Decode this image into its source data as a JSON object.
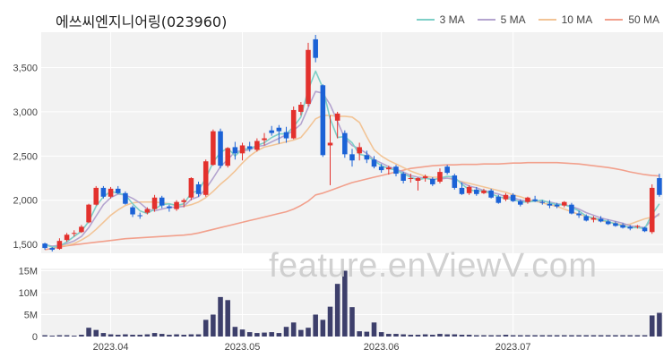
{
  "title": "에쓰씨엔지니어링(023960)",
  "watermark": "feature.enViewV.com",
  "legend": [
    {
      "label": "3 MA",
      "color": "#7ecfc7"
    },
    {
      "label": "5 MA",
      "color": "#b4a4cf"
    },
    {
      "label": "10 MA",
      "color": "#f2c496"
    },
    {
      "label": "50 MA",
      "color": "#f2a08c"
    }
  ],
  "colors": {
    "up": "#e3312d",
    "down": "#1b62d6",
    "volume": "#3d3f6b",
    "grid": "#ffffff",
    "plot_bg": "#f2f2f2"
  },
  "chart_data": [
    {
      "type": "candlestick",
      "ylim": [
        1400,
        3900
      ],
      "ytick_values": [
        1500,
        2000,
        2500,
        3000,
        3500
      ],
      "ytick_labels": [
        "1,500",
        "2,000",
        "2,500",
        "3,000",
        "3,500"
      ],
      "xtick_labels": [
        {
          "label": "2023.04",
          "index": 9
        },
        {
          "label": "2023.05",
          "index": 27
        },
        {
          "label": "2023.06",
          "index": 46
        },
        {
          "label": "2023.07",
          "index": 64
        }
      ],
      "candles": [
        [
          1510,
          1520,
          1440,
          1460
        ],
        [
          1460,
          1470,
          1420,
          1440
        ],
        [
          1450,
          1570,
          1440,
          1540
        ],
        [
          1550,
          1630,
          1530,
          1610
        ],
        [
          1620,
          1660,
          1590,
          1630
        ],
        [
          1640,
          1720,
          1630,
          1700
        ],
        [
          1750,
          1960,
          1740,
          1950
        ],
        [
          1950,
          2160,
          1940,
          2140
        ],
        [
          2140,
          2160,
          2020,
          2040
        ],
        [
          2040,
          2150,
          2020,
          2130
        ],
        [
          2130,
          2160,
          2070,
          2080
        ],
        [
          2080,
          2100,
          1950,
          1960
        ],
        [
          1920,
          1940,
          1810,
          1840
        ],
        [
          1830,
          1860,
          1790,
          1820
        ],
        [
          1860,
          1920,
          1840,
          1900
        ],
        [
          1900,
          2060,
          1870,
          2030
        ],
        [
          2030,
          2050,
          1910,
          1940
        ],
        [
          1930,
          1950,
          1870,
          1910
        ],
        [
          1900,
          2000,
          1880,
          1980
        ],
        [
          1980,
          2020,
          1920,
          2000
        ],
        [
          2030,
          2260,
          2000,
          2250
        ],
        [
          2180,
          2210,
          2040,
          2070
        ],
        [
          2060,
          2460,
          2040,
          2440
        ],
        [
          2400,
          2800,
          2390,
          2780
        ],
        [
          2780,
          2810,
          2360,
          2390
        ],
        [
          2390,
          2600,
          2370,
          2590
        ],
        [
          2600,
          2660,
          2460,
          2530
        ],
        [
          2530,
          2650,
          2450,
          2620
        ],
        [
          2610,
          2660,
          2550,
          2580
        ],
        [
          2570,
          2700,
          2550,
          2670
        ],
        [
          2680,
          2760,
          2620,
          2700
        ],
        [
          2790,
          2840,
          2730,
          2760
        ],
        [
          2820,
          2850,
          2640,
          2780
        ],
        [
          2770,
          2830,
          2650,
          2700
        ],
        [
          2700,
          3060,
          2690,
          3020
        ],
        [
          3000,
          3110,
          2960,
          3080
        ],
        [
          3090,
          3780,
          3060,
          3700
        ],
        [
          3820,
          3870,
          3560,
          3610
        ],
        [
          3300,
          3310,
          2490,
          2510
        ],
        [
          2620,
          2960,
          2170,
          2650
        ],
        [
          2900,
          3000,
          2700,
          2980
        ],
        [
          2760,
          2790,
          2480,
          2520
        ],
        [
          2520,
          2580,
          2380,
          2450
        ],
        [
          2530,
          2650,
          2450,
          2600
        ],
        [
          2510,
          2560,
          2420,
          2460
        ],
        [
          2460,
          2500,
          2360,
          2380
        ],
        [
          2380,
          2410,
          2310,
          2340
        ],
        [
          2350,
          2390,
          2290,
          2370
        ],
        [
          2380,
          2400,
          2270,
          2300
        ],
        [
          2300,
          2320,
          2190,
          2220
        ],
        [
          2240,
          2300,
          2200,
          2250
        ],
        [
          2220,
          2260,
          2110,
          2250
        ],
        [
          2250,
          2290,
          2210,
          2270
        ],
        [
          2240,
          2260,
          2160,
          2180
        ],
        [
          2210,
          2360,
          2190,
          2320
        ],
        [
          2380,
          2400,
          2290,
          2310
        ],
        [
          2280,
          2300,
          2120,
          2140
        ],
        [
          2140,
          2200,
          2060,
          2070
        ],
        [
          2080,
          2170,
          2060,
          2150
        ],
        [
          2120,
          2150,
          2050,
          2070
        ],
        [
          2080,
          2130,
          2070,
          2110
        ],
        [
          2110,
          2130,
          2020,
          2030
        ],
        [
          2040,
          2060,
          1960,
          1970
        ],
        [
          2010,
          2080,
          1990,
          2060
        ],
        [
          2060,
          2080,
          1980,
          1990
        ],
        [
          1990,
          2010,
          1930,
          1950
        ],
        [
          1980,
          2040,
          1960,
          2030
        ],
        [
          2010,
          2050,
          1980,
          1990
        ],
        [
          1980,
          2000,
          1950,
          1970
        ],
        [
          1960,
          2000,
          1910,
          1940
        ],
        [
          1950,
          1970,
          1910,
          1930
        ],
        [
          1940,
          1990,
          1920,
          1980
        ],
        [
          1950,
          1970,
          1840,
          1850
        ],
        [
          1850,
          1880,
          1800,
          1830
        ],
        [
          1820,
          1840,
          1760,
          1770
        ],
        [
          1780,
          1820,
          1750,
          1800
        ],
        [
          1790,
          1820,
          1750,
          1760
        ],
        [
          1760,
          1780,
          1720,
          1730
        ],
        [
          1740,
          1760,
          1700,
          1710
        ],
        [
          1720,
          1740,
          1680,
          1690
        ],
        [
          1700,
          1720,
          1660,
          1680
        ],
        [
          1700,
          1720,
          1680,
          1710
        ],
        [
          1690,
          1700,
          1640,
          1650
        ],
        [
          1640,
          2180,
          1620,
          2140
        ],
        [
          2250,
          2300,
          2040,
          2060
        ]
      ],
      "ma3": [
        1500,
        1470,
        1480,
        1530,
        1590,
        1650,
        1760,
        1930,
        2040,
        2100,
        2080,
        2060,
        1960,
        1880,
        1850,
        1900,
        1950,
        1960,
        1940,
        1960,
        2080,
        2110,
        2250,
        2430,
        2540,
        2590,
        2500,
        2580,
        2580,
        2620,
        2650,
        2710,
        2750,
        2750,
        2830,
        2940,
        3250,
        3460,
        3270,
        2920,
        2710,
        2720,
        2650,
        2520,
        2500,
        2450,
        2390,
        2360,
        2340,
        2300,
        2260,
        2230,
        2250,
        2230,
        2250,
        2270,
        2260,
        2180,
        2120,
        2100,
        2110,
        2070,
        2040,
        2020,
        2010,
        1980,
        1980,
        1990,
        2000,
        1970,
        1950,
        1950,
        1920,
        1880,
        1820,
        1800,
        1780,
        1760,
        1730,
        1710,
        1690,
        1690,
        1680,
        1840,
        1960
      ],
      "ma5": [
        1500,
        1480,
        1490,
        1510,
        1540,
        1590,
        1690,
        1820,
        1950,
        2030,
        2070,
        2060,
        2020,
        1970,
        1900,
        1880,
        1900,
        1920,
        1920,
        1930,
        2010,
        2040,
        2130,
        2250,
        2380,
        2460,
        2550,
        2560,
        2570,
        2610,
        2620,
        2660,
        2700,
        2740,
        2790,
        2860,
        3050,
        3230,
        3210,
        3080,
        2890,
        2700,
        2620,
        2580,
        2530,
        2460,
        2420,
        2380,
        2350,
        2320,
        2280,
        2260,
        2250,
        2240,
        2240,
        2250,
        2240,
        2200,
        2160,
        2140,
        2110,
        2090,
        2070,
        2040,
        2030,
        2000,
        1990,
        1990,
        1990,
        1980,
        1960,
        1950,
        1930,
        1900,
        1860,
        1830,
        1800,
        1780,
        1760,
        1740,
        1710,
        1700,
        1690,
        1780,
        1850
      ],
      "ma10": [
        1490,
        1480,
        1480,
        1490,
        1510,
        1550,
        1600,
        1670,
        1750,
        1830,
        1890,
        1940,
        1970,
        1980,
        1980,
        1980,
        1970,
        1960,
        1940,
        1930,
        1950,
        1980,
        2030,
        2100,
        2180,
        2250,
        2330,
        2420,
        2500,
        2560,
        2600,
        2620,
        2640,
        2660,
        2680,
        2710,
        2810,
        2920,
        2960,
        2960,
        2950,
        2950,
        2940,
        2880,
        2720,
        2570,
        2500,
        2450,
        2410,
        2370,
        2330,
        2300,
        2270,
        2260,
        2260,
        2250,
        2230,
        2210,
        2190,
        2170,
        2150,
        2130,
        2110,
        2090,
        2060,
        2040,
        2010,
        1990,
        1970,
        1950,
        1930,
        1900,
        1870,
        1840,
        1820,
        1790,
        1770,
        1750,
        1740,
        1720,
        1730,
        1760,
        1790,
        1810,
        1830
      ],
      "ma50": [
        1440,
        1455,
        1470,
        1485,
        1495,
        1505,
        1515,
        1525,
        1535,
        1545,
        1555,
        1565,
        1570,
        1575,
        1580,
        1585,
        1590,
        1595,
        1600,
        1605,
        1615,
        1630,
        1650,
        1670,
        1690,
        1710,
        1730,
        1750,
        1770,
        1790,
        1810,
        1830,
        1850,
        1870,
        1900,
        1940,
        1990,
        2060,
        2080,
        2110,
        2140,
        2170,
        2200,
        2220,
        2240,
        2260,
        2280,
        2300,
        2320,
        2340,
        2360,
        2370,
        2380,
        2390,
        2395,
        2400,
        2400,
        2405,
        2405,
        2405,
        2410,
        2410,
        2410,
        2415,
        2420,
        2420,
        2425,
        2425,
        2425,
        2425,
        2425,
        2420,
        2415,
        2410,
        2400,
        2390,
        2380,
        2370,
        2355,
        2340,
        2320,
        2305,
        2290,
        2280,
        2275
      ]
    },
    {
      "type": "bar",
      "ylim": [
        0,
        15.5
      ],
      "ytick_values": [
        0,
        5,
        10,
        15
      ],
      "ytick_labels": [
        "0",
        "5M",
        "10M",
        "15M"
      ],
      "unit": "M",
      "values": [
        0.3,
        0.2,
        0.3,
        0.3,
        0.2,
        0.4,
        2.0,
        1.5,
        0.8,
        0.5,
        0.4,
        0.5,
        0.4,
        0.4,
        0.5,
        0.8,
        0.6,
        0.4,
        0.5,
        0.4,
        0.5,
        0.5,
        3.8,
        5.0,
        9.0,
        8.3,
        2.2,
        1.6,
        1.0,
        0.8,
        0.9,
        1.0,
        0.8,
        2.2,
        3.2,
        1.5,
        2.0,
        5.0,
        3.8,
        6.8,
        12.0,
        15.0,
        6.7,
        1.2,
        1.1,
        3.2,
        1.0,
        0.6,
        0.6,
        0.5,
        0.4,
        0.4,
        0.5,
        0.4,
        0.6,
        0.5,
        0.5,
        0.4,
        0.4,
        0.3,
        0.3,
        0.3,
        0.3,
        0.4,
        0.3,
        0.3,
        0.3,
        0.3,
        0.3,
        0.3,
        0.3,
        0.3,
        0.3,
        0.3,
        0.3,
        0.3,
        0.3,
        0.3,
        0.3,
        0.3,
        0.3,
        0.3,
        0.3,
        4.8,
        5.4
      ]
    }
  ]
}
